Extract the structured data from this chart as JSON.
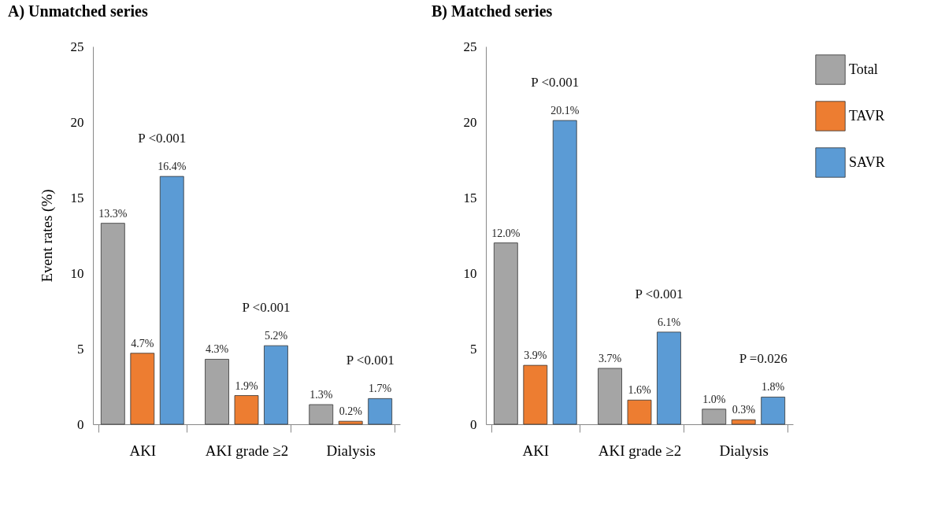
{
  "chart_data": [
    {
      "type": "bar",
      "title": "A) Unmatched series",
      "ylabel": "Event rates (%)",
      "categories": [
        "AKI",
        "AKI grade ≥2",
        "Dialysis"
      ],
      "ylim": [
        0,
        25
      ],
      "yticks": [
        0,
        5,
        10,
        15,
        20,
        25
      ],
      "grid": false,
      "legend": "right",
      "series": [
        {
          "name": "Total",
          "color": "#a5a5a5",
          "values": [
            13.3,
            4.3,
            1.3
          ],
          "value_labels": [
            "13.3%",
            "4.3%",
            "1.3%"
          ]
        },
        {
          "name": "TAVR",
          "color": "#ed7d31",
          "values": [
            4.7,
            1.9,
            0.2
          ],
          "value_labels": [
            "4.7%",
            "1.9%",
            "0.2%"
          ]
        },
        {
          "name": "SAVR",
          "color": "#5b9bd5",
          "values": [
            16.4,
            5.2,
            1.7
          ],
          "value_labels": [
            "16.4%",
            "5.2%",
            "1.7%"
          ]
        }
      ],
      "annotations": [
        "P <0.001",
        "P <0.001",
        "P <0.001"
      ]
    },
    {
      "type": "bar",
      "title": "B) Matched series",
      "categories": [
        "AKI",
        "AKI grade ≥2",
        "Dialysis"
      ],
      "ylim": [
        0,
        25
      ],
      "yticks": [
        0,
        5,
        10,
        15,
        20,
        25
      ],
      "grid": false,
      "legend": "right",
      "series": [
        {
          "name": "Total",
          "color": "#a5a5a5",
          "values": [
            12.0,
            3.7,
            1.0
          ],
          "value_labels": [
            "12.0%",
            "3.7%",
            "1.0%"
          ]
        },
        {
          "name": "TAVR",
          "color": "#ed7d31",
          "values": [
            3.9,
            1.6,
            0.3
          ],
          "value_labels": [
            "3.9%",
            "1.6%",
            "0.3%"
          ]
        },
        {
          "name": "SAVR",
          "color": "#5b9bd5",
          "values": [
            20.1,
            6.1,
            1.8
          ],
          "value_labels": [
            "20.1%",
            "6.1%",
            "1.8%"
          ]
        }
      ],
      "annotations": [
        "P <0.001",
        "P <0.001",
        "P =0.026"
      ]
    }
  ]
}
